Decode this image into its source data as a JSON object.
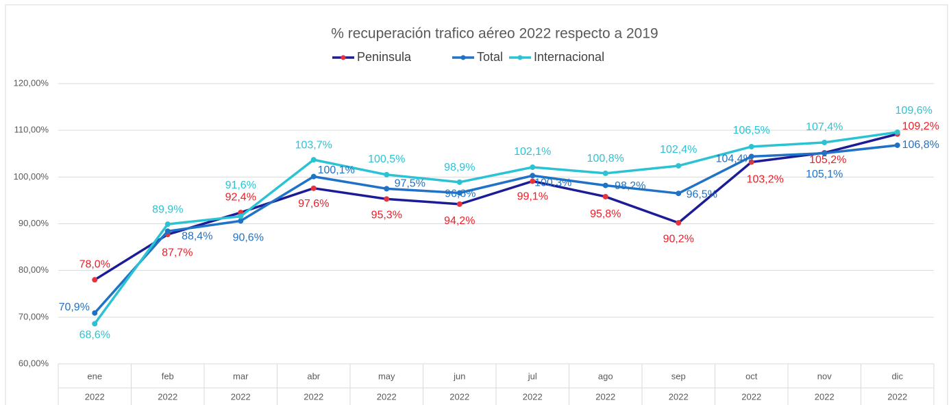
{
  "chart_data": {
    "type": "line",
    "title": "% recuperación trafico aéreo 2022 respecto a 2019",
    "categories": [
      "ene",
      "feb",
      "mar",
      "abr",
      "may",
      "jun",
      "jul",
      "ago",
      "sep",
      "oct",
      "nov",
      "dic"
    ],
    "category_years": [
      "2022",
      "2022",
      "2022",
      "2022",
      "2022",
      "2022",
      "2022",
      "2022",
      "2022",
      "2022",
      "2022",
      "2022"
    ],
    "ylim": [
      60,
      120
    ],
    "yticks": [
      {
        "value": 60,
        "label": "60,00%"
      },
      {
        "value": 70,
        "label": "70,00%"
      },
      {
        "value": 80,
        "label": "80,00%"
      },
      {
        "value": 90,
        "label": "90,00%"
      },
      {
        "value": 100,
        "label": "100,00%"
      },
      {
        "value": 110,
        "label": "110,00%"
      },
      {
        "value": 120,
        "label": "120,00%"
      }
    ],
    "grid": true,
    "legend": "top",
    "series": [
      {
        "name": "Peninsula",
        "color": "#1c1c96",
        "marker_color": "#e8323c",
        "label_color": "#ee1c25",
        "values": [
          78.0,
          87.7,
          92.4,
          97.6,
          95.3,
          94.2,
          99.1,
          95.8,
          90.2,
          103.2,
          105.2,
          109.2
        ],
        "value_labels": [
          "78,0%",
          "87,7%",
          "92,4%",
          "97,6%",
          "95,3%",
          "94,2%",
          "99,1%",
          "95,8%",
          "90,2%",
          "103,2%",
          "105,2%",
          "109,2%"
        ]
      },
      {
        "name": "Total",
        "color": "#1f72c6",
        "marker_color": "#1f72c6",
        "label_color": "#1f72c6",
        "values": [
          70.9,
          88.4,
          90.6,
          100.1,
          97.5,
          96.6,
          100.3,
          98.2,
          96.5,
          104.4,
          105.1,
          106.8
        ],
        "value_labels": [
          "70,9%",
          "88,4%",
          "90,6%",
          "100,1%",
          "97,5%",
          "96,6%",
          "100,3%",
          "98,2%",
          "96,5%",
          "104,4%",
          "105,1%",
          "106,8%"
        ]
      },
      {
        "name": "Internacional",
        "color": "#2bc3d3",
        "marker_color": "#2bc3d3",
        "label_color": "#2bc3d3",
        "values": [
          68.6,
          89.9,
          91.6,
          103.7,
          100.5,
          98.9,
          102.1,
          100.8,
          102.4,
          106.5,
          107.4,
          109.6
        ],
        "value_labels": [
          "68,6%",
          "89,9%",
          "91,6%",
          "103,7%",
          "100,5%",
          "98,9%",
          "102,1%",
          "100,8%",
          "102,4%",
          "106,5%",
          "107,4%",
          "109,6%"
        ]
      }
    ]
  }
}
